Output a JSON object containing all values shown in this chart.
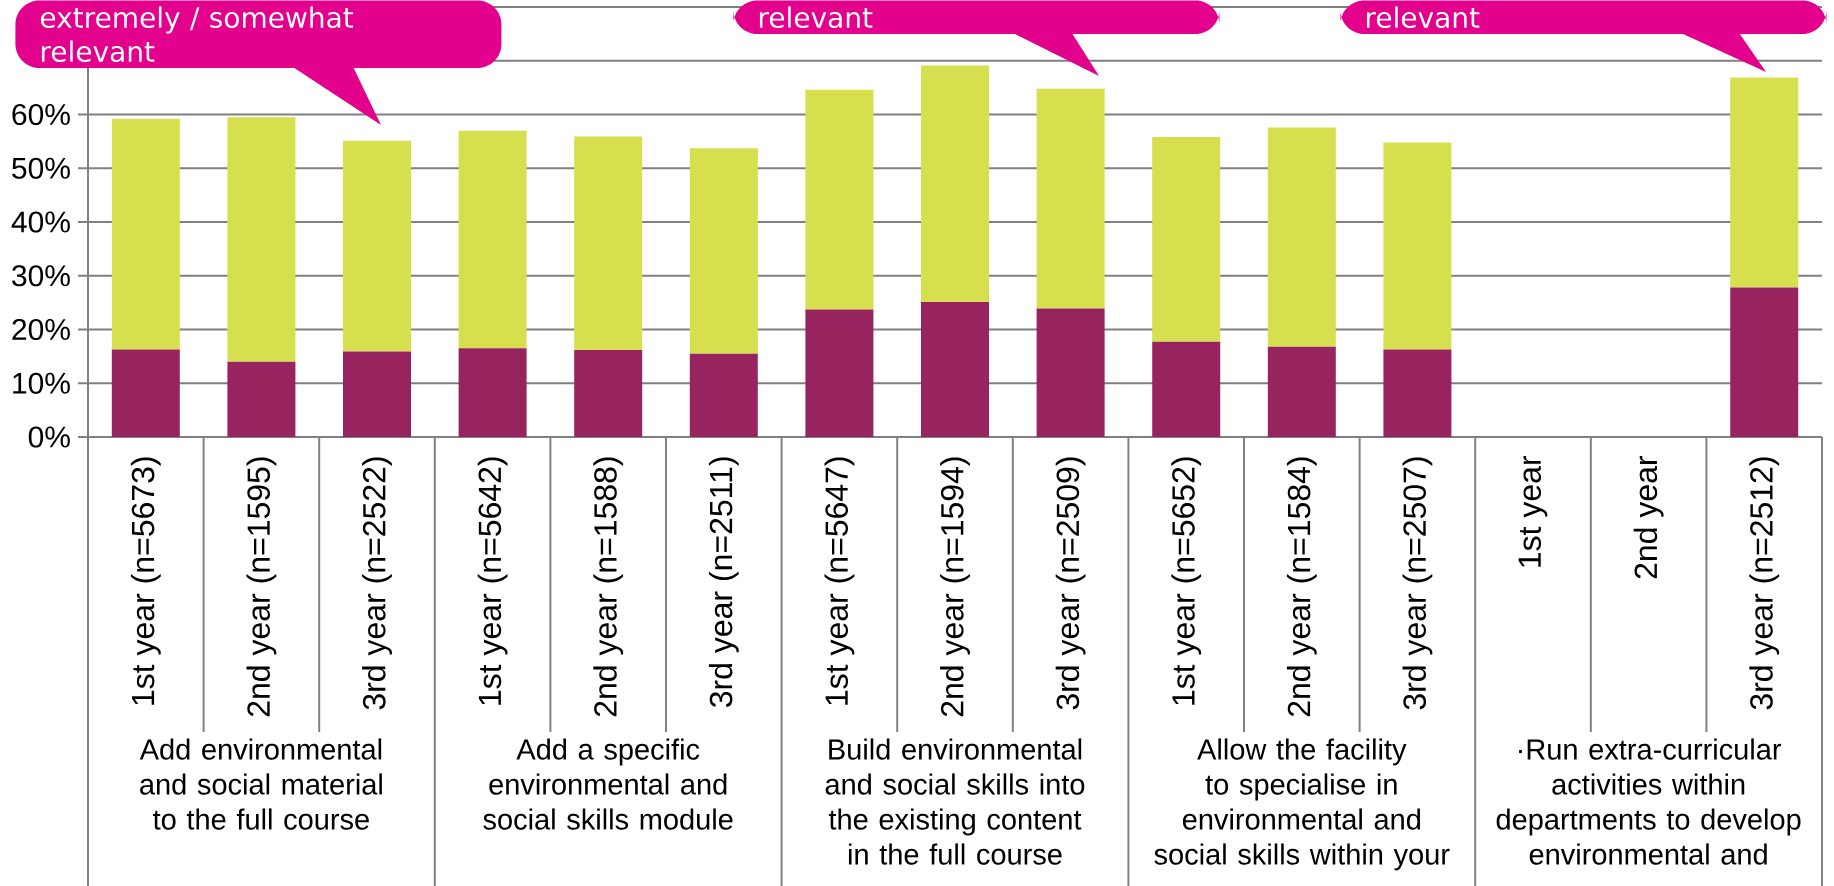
{
  "chart_data": {
    "type": "bar",
    "stacked": true,
    "grid": "y",
    "categories": [
      "1st year (n=5673)",
      "2nd year (n=1595)",
      "3rd year (n=2522)",
      "1st year (n=5642)",
      "2nd year (n=1588)",
      "3rd year (n=2511)",
      "1st year (n=5647)",
      "2nd year (n=1594)",
      "3rd year (n=2509)",
      "1st year (n=5652)",
      "2nd year (n=1584)",
      "3rd year (n=2507)",
      "1st year",
      "2nd year",
      "3rd year (n=2512)"
    ],
    "series": [
      {
        "color": "#98245f",
        "values": [
          16.3,
          14.0,
          15.9,
          16.5,
          16.2,
          15.5,
          23.7,
          25.1,
          23.9,
          17.7,
          16.8,
          16.3,
          null,
          null,
          27.8
        ]
      },
      {
        "color": "#d6df4e",
        "values": [
          42.9,
          45.5,
          39.2,
          40.5,
          39.7,
          38.2,
          40.9,
          44.0,
          40.9,
          38.1,
          40.8,
          38.5,
          null,
          null,
          39.1
        ]
      }
    ],
    "ylim": [
      0,
      80
    ],
    "yticks": [
      {
        "value": 0,
        "label": "0%"
      },
      {
        "value": 10,
        "label": "10%"
      },
      {
        "value": 20,
        "label": "20%"
      },
      {
        "value": 30,
        "label": "30%"
      },
      {
        "value": 40,
        "label": "40%"
      },
      {
        "value": 50,
        "label": "50%"
      },
      {
        "value": 60,
        "label": "60%"
      },
      {
        "value": 70,
        "label": null
      },
      {
        "value": 80,
        "label": null
      }
    ],
    "annotations": [
      "extremely / somewhat relevant",
      "relevant",
      "relevant",
      "Add environmental and social material to the full course",
      "Add a specific environmental and social skills module",
      "Build environmental and social skills into the existing content in the full course",
      "Allow the facility to specialise in environmental and social skills within your",
      "·Run extra-curricular activities within departments to develop environmental and"
    ]
  }
}
